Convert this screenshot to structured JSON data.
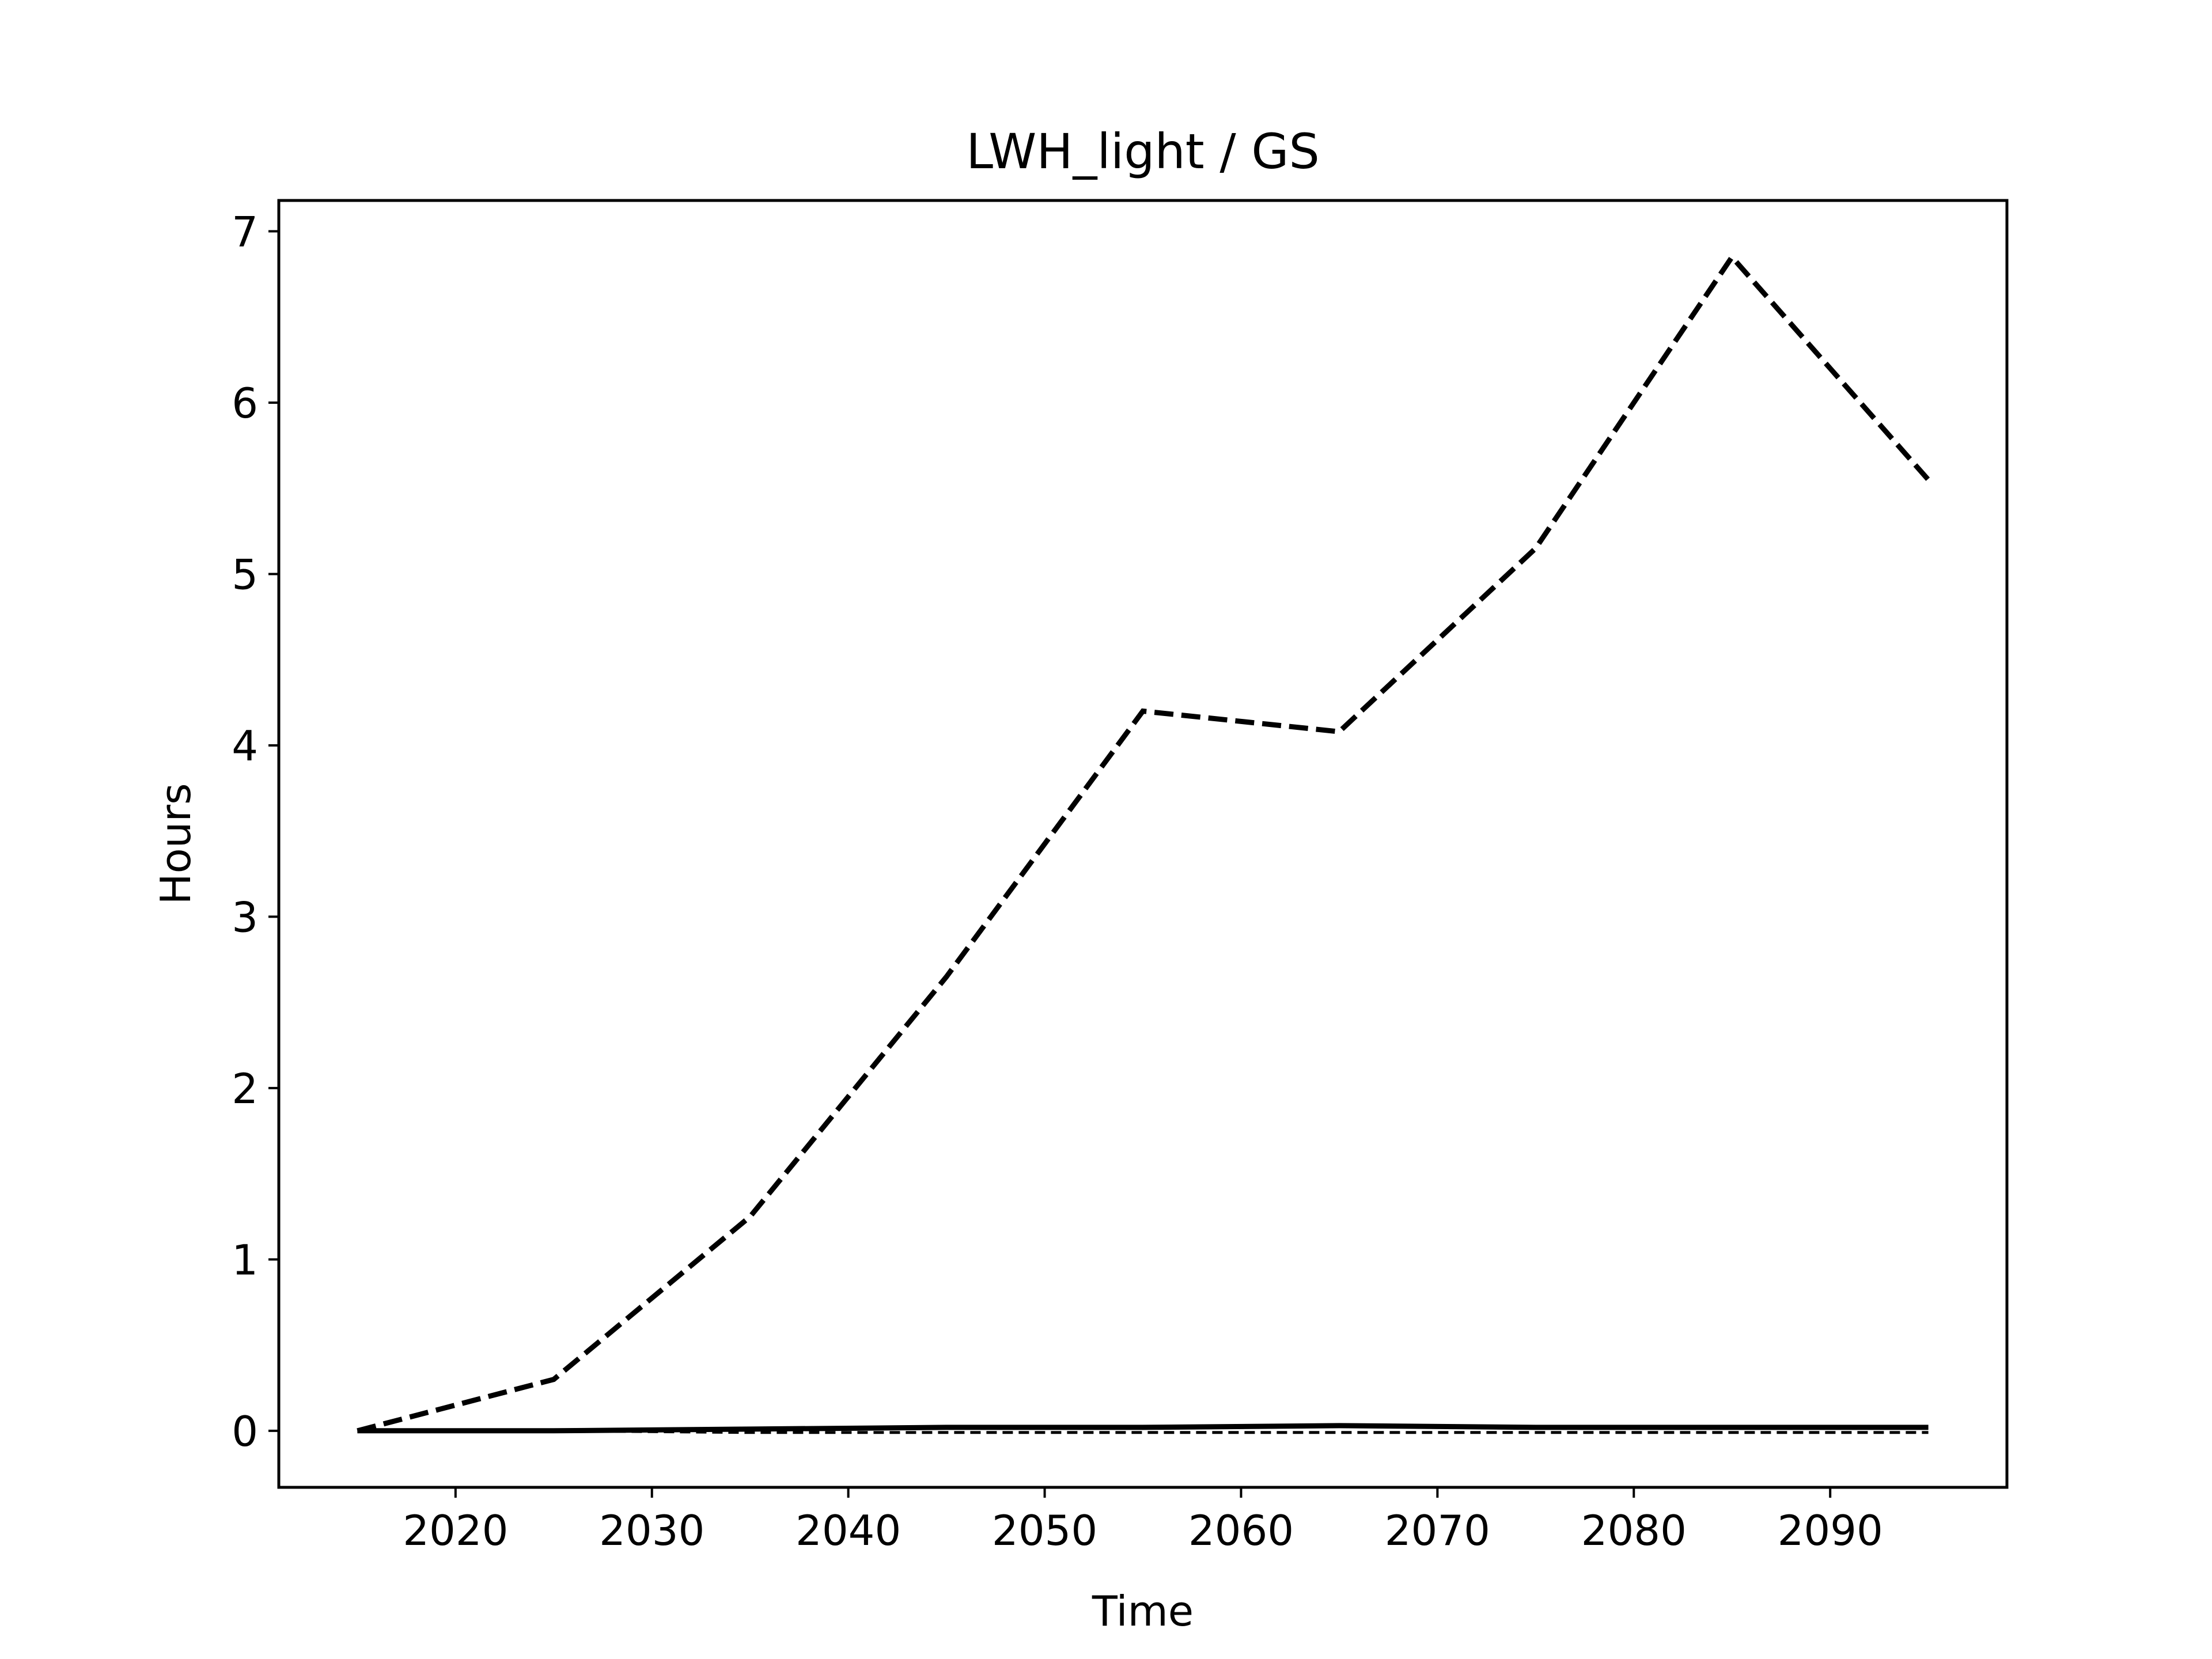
{
  "chart_data": {
    "type": "line",
    "title": "LWH_light / GS",
    "xlabel": "Time",
    "ylabel": "Hours",
    "xlim": [
      2011,
      2099
    ],
    "ylim": [
      -0.33,
      7.18
    ],
    "x_ticks": [
      2020,
      2030,
      2040,
      2050,
      2060,
      2070,
      2080,
      2090
    ],
    "y_ticks": [
      0,
      1,
      2,
      3,
      4,
      5,
      6,
      7
    ],
    "grid": false,
    "legend": "none",
    "x": [
      2015,
      2025,
      2035,
      2045,
      2055,
      2065,
      2075,
      2085,
      2095
    ],
    "series": [
      {
        "style": "dashed",
        "width": "thick",
        "color": "#000000",
        "values": [
          0.0,
          0.3,
          1.25,
          2.65,
          4.2,
          4.08,
          5.15,
          6.85,
          5.55
        ]
      },
      {
        "style": "solid",
        "width": "thick",
        "color": "#000000",
        "values": [
          0.0,
          0.0,
          0.01,
          0.02,
          0.02,
          0.03,
          0.02,
          0.02,
          0.02
        ]
      },
      {
        "style": "dashed",
        "width": "thin",
        "color": "#000000",
        "values": [
          0.0,
          0.0,
          -0.01,
          -0.01,
          -0.01,
          -0.01,
          -0.01,
          -0.01,
          -0.01
        ]
      }
    ]
  }
}
